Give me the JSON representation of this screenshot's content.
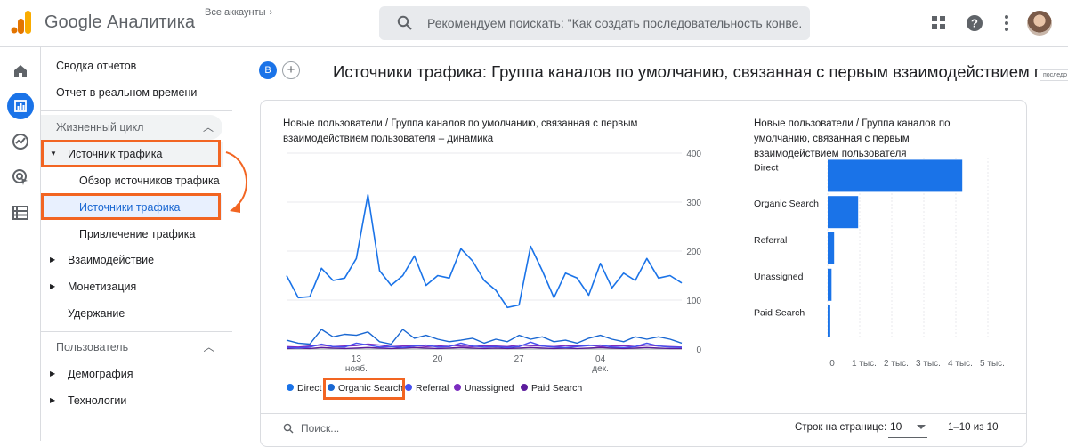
{
  "header": {
    "app_title": "Google Аналитика",
    "accounts_label": "Все аккаунты",
    "search_placeholder": "Рекомендуем поискать: \"Как создать последовательность конве..."
  },
  "nav": {
    "top": [
      "Сводка отчетов",
      "Отчет в реальном времени"
    ],
    "section_lifecycle": "Жизненный цикл",
    "traffic_source": "Источник трафика",
    "traffic_sub": [
      "Обзор источников трафика",
      "Источники трафика",
      "Привлечение трафика"
    ],
    "engagement": "Взаимодействие",
    "monetization": "Монетизация",
    "retention": "Удержание",
    "section_user": "Пользователь",
    "demography": "Демография",
    "technology": "Технологии"
  },
  "page": {
    "badge": "B",
    "title": "Источники трафика: Группа каналов по умолчанию, связанная с первым взаимодействием по",
    "tag": "последо"
  },
  "line_chart_title": [
    "Новые пользователи / Группа каналов по умолчанию, связанная с первым",
    "взаимодействием пользователя – динамика"
  ],
  "bar_chart_title": [
    "Новые пользователи / Группа каналов по",
    "умолчанию, связанная с первым",
    "взаимодействием пользователя"
  ],
  "legend": [
    "Direct",
    "Organic Search",
    "Referral",
    "Unassigned",
    "Paid Search"
  ],
  "footer": {
    "search_placeholder": "Поиск...",
    "rows_label": "Строк на странице:",
    "rows_value": "10",
    "pager": "1–10 из 10"
  },
  "colors": {
    "accent": "#1a73e8",
    "highlight": "#f26522",
    "direct": "#1a73e8",
    "organic": "#1967d2",
    "referral": "#4650f0",
    "unassigned": "#7b2cbf",
    "paid": "#5b1c9c"
  },
  "chart_data": [
    {
      "type": "line",
      "x_tick_labels": [
        [
          "13",
          "нояб."
        ],
        [
          "20",
          ""
        ],
        [
          "27",
          ""
        ],
        [
          "04",
          "дек."
        ]
      ],
      "y_ticks": [
        0,
        100,
        200,
        300,
        400
      ],
      "ylim": [
        0,
        400
      ],
      "series": [
        {
          "name": "Direct",
          "values": [
            150,
            105,
            107,
            165,
            140,
            145,
            185,
            315,
            160,
            130,
            150,
            190,
            130,
            150,
            145,
            205,
            180,
            140,
            120,
            85,
            90,
            210,
            160,
            105,
            155,
            145,
            110,
            175,
            125,
            155,
            140,
            185,
            145,
            150,
            135
          ]
        },
        {
          "name": "Organic Search",
          "values": [
            18,
            12,
            10,
            40,
            25,
            30,
            28,
            35,
            15,
            10,
            40,
            22,
            28,
            20,
            15,
            18,
            22,
            12,
            20,
            15,
            28,
            20,
            25,
            15,
            18,
            12,
            22,
            28,
            20,
            15,
            25,
            20,
            25,
            20,
            12
          ]
        },
        {
          "name": "Referral",
          "values": [
            3,
            2,
            4,
            10,
            5,
            4,
            12,
            8,
            4,
            5,
            3,
            6,
            8,
            4,
            5,
            12,
            6,
            4,
            5,
            3,
            5,
            14,
            6,
            4,
            3,
            5,
            7,
            8,
            4,
            3,
            5,
            12,
            6,
            4,
            3
          ]
        },
        {
          "name": "Unassigned",
          "values": [
            5,
            4,
            6,
            8,
            5,
            6,
            7,
            10,
            8,
            5,
            6,
            7,
            5,
            6,
            8,
            6,
            5,
            7,
            6,
            5,
            8,
            7,
            6,
            5,
            7,
            6,
            8,
            5,
            6,
            7,
            5,
            8,
            6,
            5,
            4
          ]
        },
        {
          "name": "Paid Search",
          "values": [
            1,
            2,
            1,
            3,
            2,
            1,
            2,
            3,
            2,
            1,
            2,
            3,
            2,
            1,
            2,
            3,
            2,
            1,
            2,
            1,
            2,
            3,
            2,
            1,
            2,
            1,
            2,
            3,
            2,
            1,
            2,
            3,
            2,
            1,
            1
          ]
        }
      ]
    },
    {
      "type": "bar",
      "orientation": "horizontal",
      "categories": [
        "Direct",
        "Organic Search",
        "Referral",
        "Unassigned",
        "Paid Search"
      ],
      "values": [
        4200,
        950,
        200,
        120,
        80
      ],
      "x_tick_labels": [
        "0",
        "1 тыс.",
        "2 тыс.",
        "3 тыс.",
        "4 тыс.",
        "5 тыс."
      ],
      "xlim": [
        0,
        5000
      ]
    }
  ]
}
